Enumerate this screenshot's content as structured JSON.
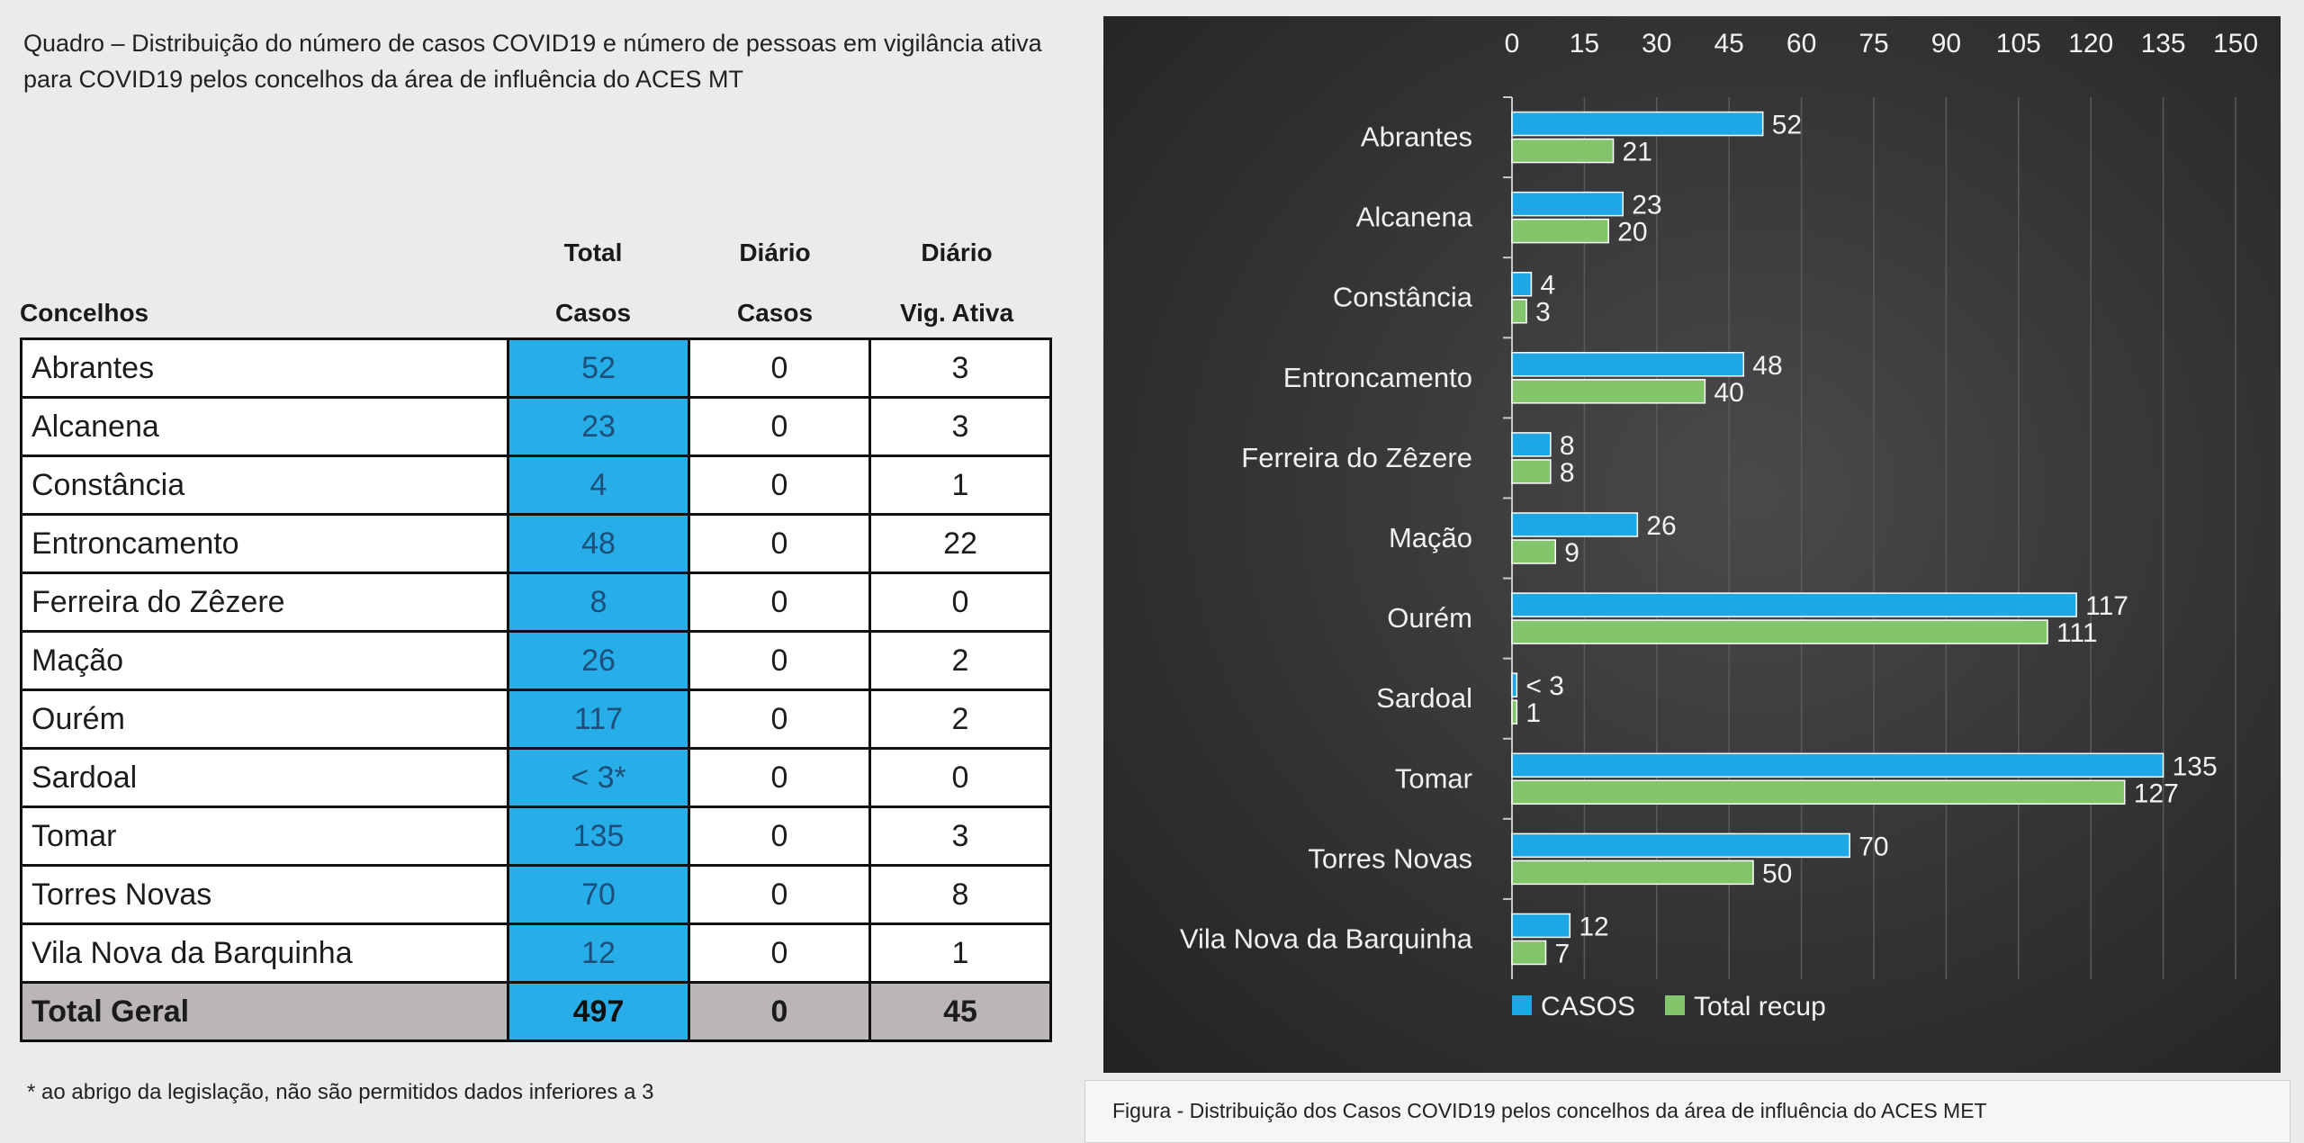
{
  "table": {
    "caption": "Quadro – Distribuição do número de casos COVID19 e número de pessoas em vigilância ativa para COVID19 pelos concelhos da área de influência do ACES MT",
    "headers": {
      "concelhos": "Concelhos",
      "total_top": "Total",
      "total_bottom": "Casos",
      "diario_casos_top": "Diário",
      "diario_casos_bottom": "Casos",
      "diario_vig_top": "Diário",
      "diario_vig_bottom": "Vig. Ativa"
    },
    "rows": [
      {
        "concelho": "Abrantes",
        "total": "52",
        "diario_casos": "0",
        "diario_vig": "3"
      },
      {
        "concelho": "Alcanena",
        "total": "23",
        "diario_casos": "0",
        "diario_vig": "3"
      },
      {
        "concelho": "Constância",
        "total": "4",
        "diario_casos": "0",
        "diario_vig": "1"
      },
      {
        "concelho": "Entroncamento",
        "total": "48",
        "diario_casos": "0",
        "diario_vig": "22"
      },
      {
        "concelho": "Ferreira do Zêzere",
        "total": "8",
        "diario_casos": "0",
        "diario_vig": "0"
      },
      {
        "concelho": "Mação",
        "total": "26",
        "diario_casos": "0",
        "diario_vig": "2"
      },
      {
        "concelho": "Ourém",
        "total": "117",
        "diario_casos": "0",
        "diario_vig": "2"
      },
      {
        "concelho": "Sardoal",
        "total": "< 3*",
        "diario_casos": "0",
        "diario_vig": "0"
      },
      {
        "concelho": "Tomar",
        "total": "135",
        "diario_casos": "0",
        "diario_vig": "3"
      },
      {
        "concelho": "Torres Novas",
        "total": "70",
        "diario_casos": "0",
        "diario_vig": "8"
      },
      {
        "concelho": "Vila Nova da Barquinha",
        "total": "12",
        "diario_casos": "0",
        "diario_vig": "1"
      }
    ],
    "total_row": {
      "concelho": "Total Geral",
      "total": "497",
      "diario_casos": "0",
      "diario_vig": "45"
    },
    "footnote": "* ao abrigo da legislação, não são permitidos dados inferiores a 3"
  },
  "figure_caption": "Figura -  Distribuição dos Casos COVID19 pelos concelhos da área de influência do ACES MET",
  "chart_data": {
    "type": "bar",
    "orientation": "horizontal",
    "categories": [
      "Abrantes",
      "Alcanena",
      "Constância",
      "Entroncamento",
      "Ferreira do Zêzere",
      "Mação",
      "Ourém",
      "Sardoal",
      "Tomar",
      "Torres Novas",
      "Vila Nova da Barquinha"
    ],
    "series": [
      {
        "name": "CASOS",
        "color": "#1ea7e5",
        "values": [
          52,
          23,
          4,
          48,
          8,
          26,
          117,
          1,
          135,
          70,
          12
        ],
        "labels": [
          "52",
          "23",
          "4",
          "48",
          "8",
          "26",
          "117",
          "< 3",
          "135",
          "70",
          "12"
        ]
      },
      {
        "name": "Total recup",
        "color": "#83c56b",
        "values": [
          21,
          20,
          3,
          40,
          8,
          9,
          111,
          1,
          127,
          50,
          7
        ],
        "labels": [
          "21",
          "20",
          "3",
          "40",
          "8",
          "9",
          "111",
          "1",
          "127",
          "50",
          "7"
        ]
      }
    ],
    "xlim": [
      0,
      150
    ],
    "xticks": [
      0,
      15,
      30,
      45,
      60,
      75,
      90,
      105,
      120,
      135,
      150
    ],
    "axis_position": "top",
    "grid": true,
    "legend_position": "bottom-left",
    "background": "#333335"
  }
}
